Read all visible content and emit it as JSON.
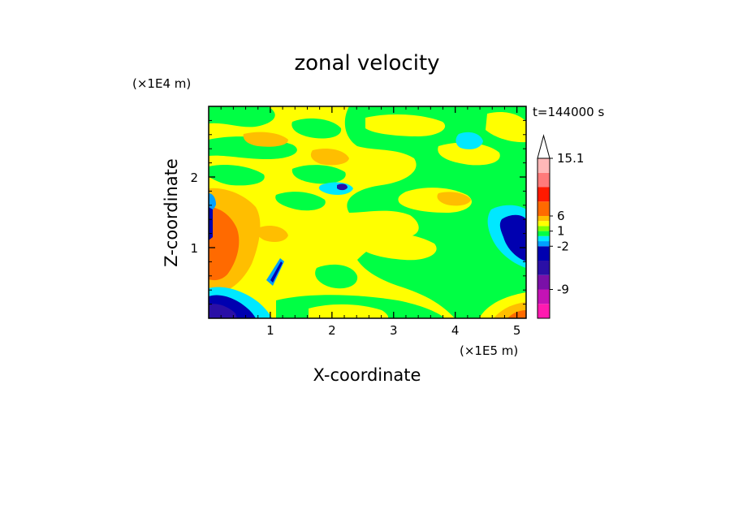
{
  "chart_data": {
    "type": "heatmap",
    "title": "zonal velocity",
    "xlabel": "X-coordinate",
    "ylabel": "Z-coordinate",
    "x_unit": "(×1E5 m)",
    "y_unit": "(×1E4 m)",
    "time_label": "t=144000 s",
    "xlim": [
      0,
      5.15
    ],
    "ylim": [
      0,
      3.0
    ],
    "x_ticks": [
      1,
      2,
      3,
      4,
      5
    ],
    "y_ticks": [
      1,
      2
    ],
    "colorbar": {
      "levels": [
        -15,
        -12,
        -9,
        -6,
        -3,
        -2,
        -1,
        0,
        1,
        2,
        3,
        6,
        9,
        12,
        15.1
      ],
      "tick_labels": [
        "15.1",
        "6",
        "1",
        "-2",
        "-9"
      ],
      "tick_values": [
        15.1,
        6,
        1,
        -2,
        -9
      ],
      "colors": [
        "#ff1ab0",
        "#c413b5",
        "#7a10a8",
        "#2a0fa6",
        "#0000b0",
        "#00a0ff",
        "#00e8ff",
        "#00ff44",
        "#7fff00",
        "#ffff00",
        "#ffbe00",
        "#ff6a00",
        "#ff1a00",
        "#ff7a7a",
        "#ffb8b8"
      ],
      "extend_max": true
    },
    "grid": false
  }
}
